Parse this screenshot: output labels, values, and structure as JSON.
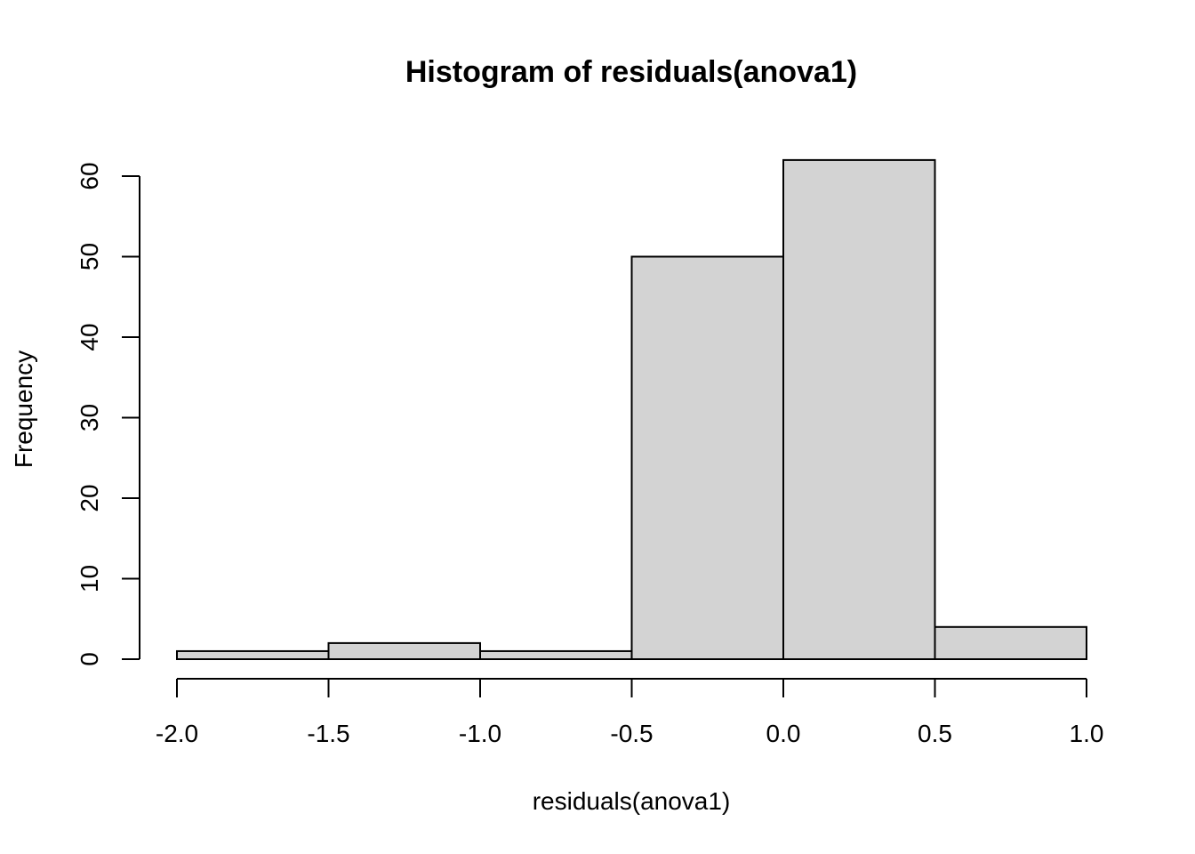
{
  "chart_data": {
    "type": "bar",
    "subtype": "histogram",
    "title": "Histogram of residuals(anova1)",
    "xlabel": "residuals(anova1)",
    "ylabel": "Frequency",
    "bins": [
      {
        "from": -2.0,
        "to": -1.5,
        "count": 1
      },
      {
        "from": -1.5,
        "to": -1.0,
        "count": 2
      },
      {
        "from": -1.0,
        "to": -0.5,
        "count": 1
      },
      {
        "from": -0.5,
        "to": 0.0,
        "count": 50
      },
      {
        "from": 0.0,
        "to": 0.5,
        "count": 62
      },
      {
        "from": 0.5,
        "to": 1.0,
        "count": 4
      }
    ],
    "xlim": [
      -2.0,
      1.0
    ],
    "ylim": [
      0,
      62
    ],
    "x_ticks": [
      -2.0,
      -1.5,
      -1.0,
      -0.5,
      0.0,
      0.5,
      1.0
    ],
    "x_tick_labels": [
      "-2.0",
      "-1.5",
      "-1.0",
      "-0.5",
      "0.0",
      "0.5",
      "1.0"
    ],
    "y_ticks": [
      0,
      10,
      20,
      30,
      40,
      50,
      60
    ],
    "y_tick_labels": [
      "0",
      "10",
      "20",
      "30",
      "40",
      "50",
      "60"
    ],
    "grid": false,
    "colors": {
      "bar_fill": "#d3d3d3",
      "bar_stroke": "#000000",
      "background": "#ffffff"
    }
  }
}
